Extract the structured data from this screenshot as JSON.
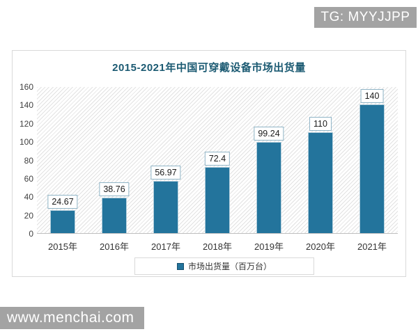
{
  "watermarks": {
    "top_right": "TG: MYYJJPP",
    "bottom_left": "www.menchai.com"
  },
  "chart_data": {
    "type": "bar",
    "title": "2015-2021年中国可穿戴设备市场出货量",
    "categories": [
      "2015年",
      "2016年",
      "2017年",
      "2018年",
      "2019年",
      "2020年",
      "2021年"
    ],
    "values": [
      24.67,
      38.76,
      56.97,
      72.4,
      99.24,
      110,
      140
    ],
    "data_labels": [
      "24.67",
      "38.76",
      "56.97",
      "72.4",
      "99.24",
      "110",
      "140"
    ],
    "legend": "市场出货量（百万台）",
    "legend_position": "bottom",
    "xlabel": "",
    "ylabel": "",
    "ylim": [
      0,
      160
    ],
    "yticks": [
      0,
      20,
      40,
      60,
      80,
      100,
      120,
      140,
      160
    ],
    "grid": false,
    "plot_background": "diagonal-hatch",
    "colors": {
      "bar": "#23749c",
      "title": "#1b5a72",
      "label_box_border": "#8fb4c6",
      "chart_border": "#d9d9d9",
      "axis_text": "#404040",
      "watermark_bg": "#a3a3a3",
      "watermark_text": "#ffffff"
    }
  }
}
